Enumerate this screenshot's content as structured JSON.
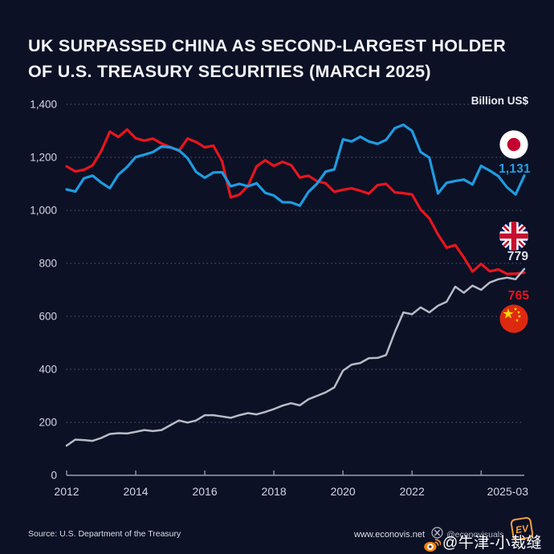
{
  "title": {
    "line1": "UK SURPASSED CHINA AS SECOND-LARGEST HOLDER",
    "line2": "OF U.S. TREASURY SECURITIES (MARCH 2025)"
  },
  "chart_data": {
    "type": "line",
    "title": "UK surpassed China as second-largest holder of U.S. Treasury securities (March 2025)",
    "unit_label": "Billion US$",
    "xlim": [
      2012,
      2025.25
    ],
    "ylim": [
      0,
      1400
    ],
    "grid": "dotted horizontal",
    "legend_position": "right edge flags",
    "x_ticks": [
      2012,
      2014,
      2016,
      2018,
      2020,
      2022,
      2024
    ],
    "x_tick_labels": [
      "2012",
      "2014",
      "2016",
      "2018",
      "2020",
      "2022"
    ],
    "x_end_label": "2025-03",
    "y_ticks": [
      0,
      200,
      400,
      600,
      800,
      1000,
      1200,
      1400
    ],
    "y_tick_labels": [
      "0",
      "200",
      "400",
      "600",
      "800",
      "1,000",
      "1,200",
      "1,400"
    ],
    "x": [
      2012,
      2012.25,
      2012.5,
      2012.75,
      2013,
      2013.25,
      2013.5,
      2013.75,
      2014,
      2014.25,
      2014.5,
      2014.75,
      2015,
      2015.25,
      2015.5,
      2015.75,
      2016,
      2016.25,
      2016.5,
      2016.75,
      2017,
      2017.25,
      2017.5,
      2017.75,
      2018,
      2018.25,
      2018.5,
      2018.75,
      2019,
      2019.25,
      2019.5,
      2019.75,
      2020,
      2020.25,
      2020.5,
      2020.75,
      2021,
      2021.25,
      2021.5,
      2021.75,
      2022,
      2022.25,
      2022.5,
      2022.75,
      2023,
      2023.25,
      2023.5,
      2023.75,
      2024,
      2024.25,
      2024.5,
      2024.75,
      2025,
      2025.25
    ],
    "series": [
      {
        "name": "China",
        "color": "#e8151d",
        "stroke_width": 3.2,
        "end_label": "765",
        "end_value": 765,
        "flag": "china",
        "values": [
          1166,
          1147,
          1153,
          1170,
          1223,
          1297,
          1277,
          1305,
          1272,
          1263,
          1271,
          1252,
          1239,
          1224,
          1271,
          1258,
          1238,
          1244,
          1185,
          1049,
          1059,
          1092,
          1166,
          1189,
          1168,
          1183,
          1171,
          1124,
          1131,
          1110,
          1102,
          1070,
          1078,
          1083,
          1074,
          1063,
          1095,
          1100,
          1068,
          1065,
          1060,
          1003,
          970,
          909,
          859,
          869,
          822,
          769,
          798,
          770,
          777,
          760,
          761,
          765
        ]
      },
      {
        "name": "United Kingdom",
        "color": "#b9bcc6",
        "stroke_width": 2.5,
        "end_label": "779",
        "end_value": 779,
        "flag": "uk",
        "values": [
          112,
          135,
          133,
          130,
          141,
          156,
          159,
          158,
          164,
          171,
          167,
          171,
          189,
          207,
          199,
          207,
          227,
          227,
          222,
          217,
          227,
          235,
          230,
          239,
          250,
          263,
          272,
          264,
          287,
          300,
          313,
          332,
          395,
          418,
          424,
          442,
          443,
          454,
          540,
          615,
          608,
          634,
          615,
          640,
          655,
          712,
          689,
          716,
          700,
          728,
          740,
          746,
          740,
          779
        ]
      },
      {
        "name": "Japan",
        "color": "#1e9ce0",
        "stroke_width": 3.2,
        "end_label": "1,131",
        "end_value": 1131,
        "flag": "japan",
        "values": [
          1079,
          1071,
          1121,
          1131,
          1105,
          1084,
          1135,
          1164,
          1201,
          1210,
          1220,
          1241,
          1238,
          1227,
          1197,
          1145,
          1123,
          1143,
          1144,
          1091,
          1100,
          1091,
          1102,
          1066,
          1056,
          1031,
          1030,
          1018,
          1069,
          1101,
          1146,
          1155,
          1268,
          1260,
          1278,
          1260,
          1251,
          1266,
          1310,
          1323,
          1300,
          1220,
          1199,
          1064,
          1104,
          1111,
          1116,
          1098,
          1168,
          1150,
          1129,
          1087,
          1060,
          1131
        ]
      }
    ]
  },
  "footer": {
    "source": "Source: U.S. Department of the Treasury",
    "website": "www.econovis.net",
    "x_handle": "@econovisuals",
    "logo_text": "EV"
  },
  "watermark": {
    "handle": "@牛津-小裁缝"
  },
  "colors": {
    "background": "#0c1126",
    "japan_line": "#1e9ce0",
    "china_line": "#e8151d",
    "uk_line": "#b9bcc6",
    "grid": "#5a5f7a",
    "axis_text": "#d3d6e4"
  }
}
